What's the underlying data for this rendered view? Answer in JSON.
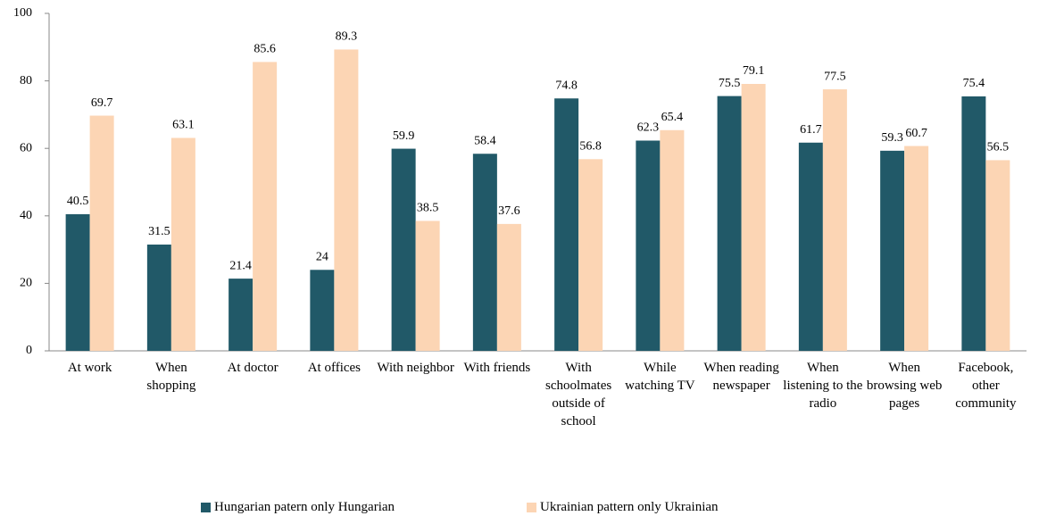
{
  "chart_data": {
    "type": "bar",
    "categories": [
      "At work",
      "When shopping",
      "At doctor",
      "At offices",
      "With neighbor",
      "With friends",
      "With schoolmates outside of school",
      "While watching TV",
      "When reading newspaper",
      "When listening to the radio",
      "When browsing web pages",
      "Facebook, other community"
    ],
    "series": [
      {
        "name": "Hungarian patern only Hungarian",
        "color": "#215968",
        "values": [
          40.5,
          31.5,
          21.4,
          24,
          59.9,
          58.4,
          74.8,
          62.3,
          75.5,
          61.7,
          59.3,
          75.4
        ]
      },
      {
        "name": "Ukrainian pattern only Ukrainian",
        "color": "#fcd5b4",
        "values": [
          69.7,
          63.1,
          85.6,
          89.3,
          38.5,
          37.6,
          56.8,
          65.4,
          79.1,
          77.5,
          60.7,
          56.5
        ]
      }
    ],
    "ylim": [
      0,
      100
    ],
    "yticks": [
      0,
      20,
      40,
      60,
      80,
      100
    ],
    "grid": false,
    "legend": "bottom"
  }
}
